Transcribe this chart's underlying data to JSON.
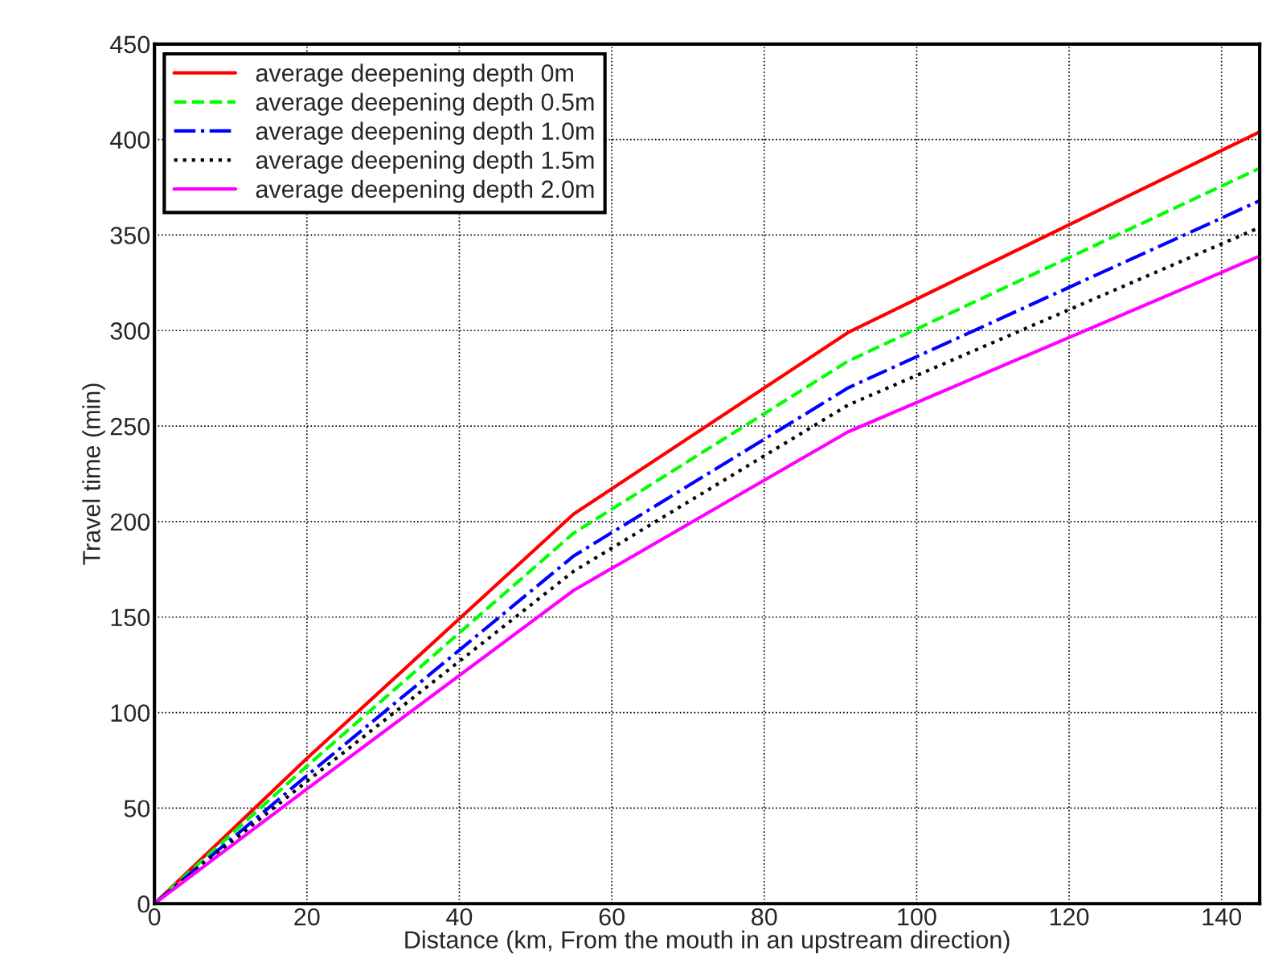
{
  "chart_data": {
    "type": "line",
    "xlabel": "Distance (km, From the mouth in an upstream direction)",
    "ylabel": "Travel time (min)",
    "x": [
      0,
      20,
      55,
      91,
      145
    ],
    "series": [
      {
        "name": "average deepening depth 0m",
        "color": "#ff0000",
        "line_style": "solid",
        "values": [
          0,
          76,
          204,
          299,
          404
        ]
      },
      {
        "name": "average deepening depth 0.5m",
        "color": "#00ff00",
        "line_style": "dashed",
        "values": [
          0,
          72,
          194,
          284,
          385
        ]
      },
      {
        "name": "average deepening depth 1.0m",
        "color": "#0000ff",
        "line_style": "dashdot",
        "values": [
          0,
          67,
          182,
          270,
          368
        ]
      },
      {
        "name": "average deepening depth 1.5m",
        "color": "#000000",
        "line_style": "dotted",
        "values": [
          0,
          64,
          174,
          261,
          354
        ]
      },
      {
        "name": "average deepening depth 2.0m",
        "color": "#ff00ff",
        "line_style": "solid",
        "values": [
          0,
          60,
          164,
          247,
          339
        ]
      }
    ],
    "xlim": [
      0,
      145
    ],
    "xticks": [
      0,
      20,
      40,
      60,
      80,
      100,
      120,
      140
    ],
    "ylim": [
      0,
      450
    ],
    "yticks": [
      0,
      50,
      100,
      150,
      200,
      250,
      300,
      350,
      400,
      450
    ],
    "grid": true,
    "legend": "top left"
  }
}
